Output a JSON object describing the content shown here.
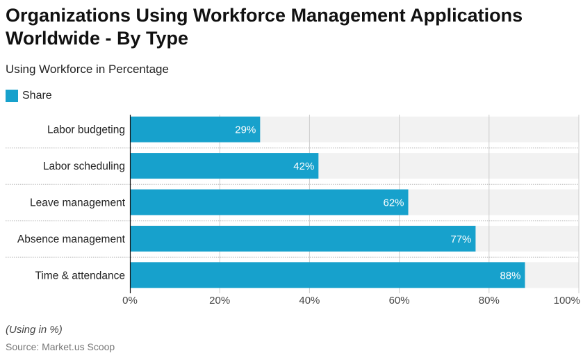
{
  "title": "Organizations Using Workforce Management Applications Worldwide - By Type",
  "subtitle": "Using Workforce in Percentage",
  "note": "(Using in %)",
  "source": "Source: Market.us Scoop",
  "colors": {
    "bar": "#17a1cc",
    "track": "#f2f2f2",
    "grid": "#cccccc",
    "label_inside": "#ffffff"
  },
  "chart_data": {
    "type": "bar",
    "orientation": "horizontal",
    "title": "Organizations Using Workforce Management Applications Worldwide - By Type",
    "subtitle": "Using Workforce in Percentage",
    "legend": {
      "entries": [
        "Share"
      ],
      "placement": "top-left"
    },
    "categories": [
      "Labor budgeting",
      "Labor scheduling",
      "Leave management",
      "Absence management",
      "Time & attendance"
    ],
    "series": [
      {
        "name": "Share",
        "values": [
          29,
          42,
          62,
          77,
          88
        ]
      }
    ],
    "data_labels": [
      "29%",
      "42%",
      "62%",
      "77%",
      "88%"
    ],
    "xlabel": "",
    "ylabel": "",
    "xlim": [
      0,
      100
    ],
    "xticks": [
      0,
      20,
      40,
      60,
      80,
      100
    ],
    "xtick_labels": [
      "0%",
      "20%",
      "40%",
      "60%",
      "80%",
      "100%"
    ],
    "grid": true
  }
}
